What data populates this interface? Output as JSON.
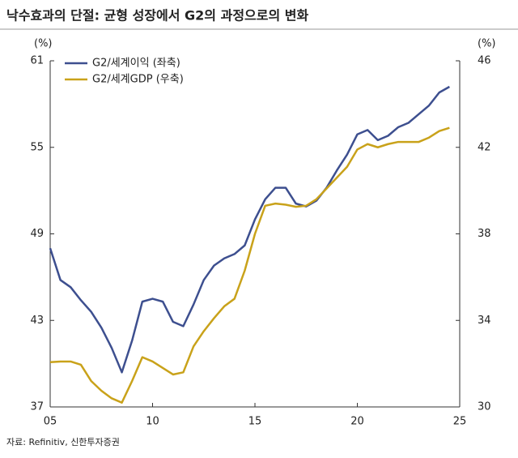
{
  "chart_data": {
    "type": "line",
    "title": "낙수효과의 단절: 균형 성장에서 G2의 과정으로의 변화",
    "y_label": "(%)",
    "y2_label": "(%)",
    "source": "자료: Refinitiv, 신한투자증권",
    "x": [
      5,
      5.5,
      6,
      6.5,
      7,
      7.5,
      8,
      8.5,
      9,
      9.5,
      10,
      10.5,
      11,
      11.5,
      12,
      12.5,
      13,
      13.5,
      14,
      14.5,
      15,
      15.5,
      16,
      16.5,
      17,
      17.5,
      18,
      18.5,
      19,
      19.5,
      20,
      20.5,
      21,
      21.5,
      22,
      22.5,
      23,
      23.5,
      24,
      24.5
    ],
    "xlim": [
      5,
      25
    ],
    "xticks": [
      {
        "value": 5,
        "label": "05"
      },
      10,
      15,
      20,
      25
    ],
    "ylim": [
      37,
      61
    ],
    "yticks": [
      37,
      43,
      49,
      55,
      61
    ],
    "y2lim": [
      30,
      46
    ],
    "y2ticks": [
      30,
      34,
      38,
      42,
      46
    ],
    "legend": "upper left",
    "series": [
      {
        "name": "G2/세계이익 (좌축)",
        "color": "#3d4f8f",
        "values": [
          48.0,
          45.8,
          45.3,
          44.4,
          43.6,
          42.5,
          41.1,
          39.4,
          41.6,
          44.3,
          44.5,
          44.3,
          42.9,
          42.6,
          44.1,
          45.8,
          46.8,
          47.3,
          47.6,
          48.2,
          50.0,
          51.4,
          52.2,
          52.2,
          51.1,
          50.9,
          51.3,
          52.2,
          53.4,
          54.5,
          55.9,
          56.2,
          55.5,
          55.8,
          56.4,
          56.7,
          57.3,
          57.9,
          58.8,
          59.2
        ]
      },
      {
        "name": "G2/세계GDP (우축)",
        "color": "#c9a21a",
        "axis": "y2",
        "values": [
          32.07,
          32.1,
          32.1,
          31.95,
          31.2,
          30.75,
          30.4,
          30.2,
          31.2,
          32.3,
          32.1,
          31.8,
          31.5,
          31.6,
          32.8,
          33.5,
          34.1,
          34.65,
          35.0,
          36.3,
          38.0,
          39.3,
          39.4,
          39.35,
          39.25,
          39.3,
          39.6,
          40.1,
          40.6,
          41.1,
          41.9,
          42.15,
          42.0,
          42.15,
          42.25,
          42.25,
          42.25,
          42.45,
          42.75,
          42.9
        ]
      }
    ]
  }
}
